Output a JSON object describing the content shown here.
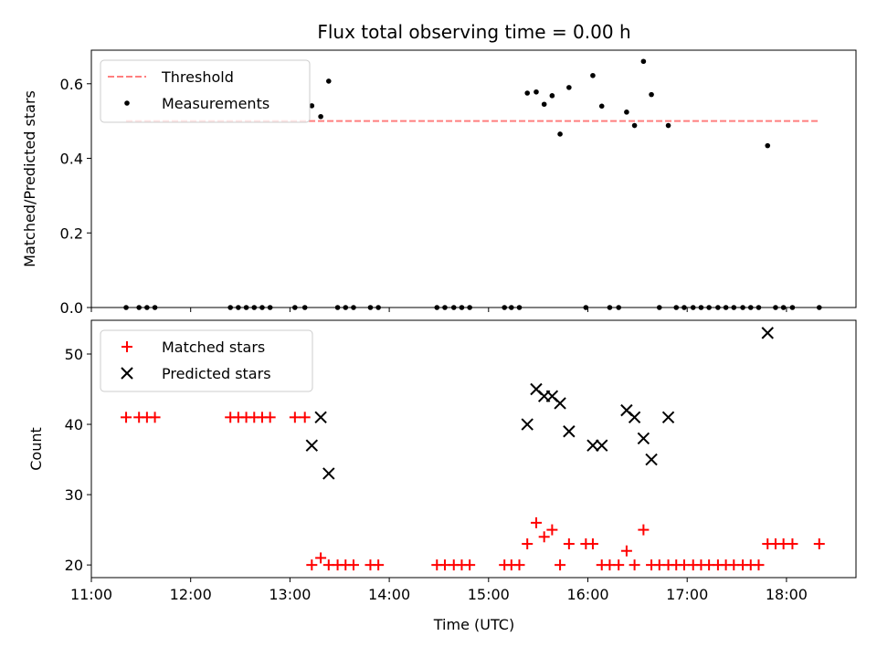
{
  "chart_data": {
    "title": "Flux total observing time = 0.00 h",
    "xlabel": "Time (UTC)",
    "xlim": [
      11.0,
      18.7
    ],
    "xticks": [
      {
        "v": 11,
        "label": "11:00"
      },
      {
        "v": 12,
        "label": "12:00"
      },
      {
        "v": 13,
        "label": "13:00"
      },
      {
        "v": 14,
        "label": "14:00"
      },
      {
        "v": 15,
        "label": "15:00"
      },
      {
        "v": 16,
        "label": "16:00"
      },
      {
        "v": 17,
        "label": "17:00"
      },
      {
        "v": 18,
        "label": "18:00"
      }
    ],
    "panels": [
      {
        "type": "scatter",
        "ylabel": "Matched/Predicted stars",
        "ylim": [
          0,
          0.69
        ],
        "yticks": [
          {
            "v": 0.0,
            "label": "0.0"
          },
          {
            "v": 0.2,
            "label": "0.2"
          },
          {
            "v": 0.4,
            "label": "0.4"
          },
          {
            "v": 0.6,
            "label": "0.6"
          }
        ],
        "threshold": {
          "name": "Threshold",
          "y": 0.5,
          "x": [
            11.35,
            18.33
          ],
          "color": "#ff7f7f"
        },
        "legend": [
          {
            "kind": "dashed",
            "label": "Threshold",
            "color": "#ff7f7f"
          },
          {
            "kind": "dot",
            "label": "Measurements",
            "color": "#000000"
          }
        ],
        "series": [
          {
            "name": "Measurements",
            "marker": "dot",
            "color": "#000000",
            "x": [
              11.35,
              11.48,
              11.56,
              11.64,
              12.4,
              12.48,
              12.56,
              12.64,
              12.72,
              12.8,
              13.05,
              13.15,
              13.22,
              13.31,
              13.39,
              13.48,
              13.56,
              13.64,
              13.81,
              13.89,
              14.48,
              14.56,
              14.65,
              14.73,
              14.81,
              15.16,
              15.23,
              15.31,
              15.39,
              15.48,
              15.56,
              15.64,
              15.72,
              15.81,
              15.98,
              16.05,
              16.14,
              16.22,
              16.31,
              16.39,
              16.47,
              16.56,
              16.64,
              16.72,
              16.81,
              16.89,
              16.97,
              17.06,
              17.14,
              17.22,
              17.31,
              17.39,
              17.47,
              17.56,
              17.64,
              17.72,
              17.81,
              17.89,
              17.97,
              18.06,
              18.33
            ],
            "y": [
              0,
              0,
              0,
              0,
              0,
              0,
              0,
              0,
              0,
              0,
              0,
              0,
              0.541,
              0.512,
              0.607,
              0,
              0,
              0,
              0,
              0,
              0,
              0,
              0,
              0,
              0,
              0,
              0,
              0,
              0.575,
              0.578,
              0.545,
              0.568,
              0.465,
              0.59,
              0,
              0.622,
              0.54,
              0,
              0,
              0.524,
              0.488,
              0.66,
              0.571,
              0,
              0.488,
              0,
              0,
              0,
              0,
              0,
              0,
              0,
              0,
              0,
              0,
              0,
              0.434,
              0,
              0,
              0,
              0
            ]
          }
        ]
      },
      {
        "type": "scatter",
        "ylabel": "Count",
        "ylim": [
          18.2,
          54.8
        ],
        "yticks": [
          {
            "v": 20,
            "label": "20"
          },
          {
            "v": 30,
            "label": "30"
          },
          {
            "v": 40,
            "label": "40"
          },
          {
            "v": 50,
            "label": "50"
          }
        ],
        "legend": [
          {
            "kind": "plus",
            "label": "Matched stars",
            "color": "#ff0000"
          },
          {
            "kind": "cross",
            "label": "Predicted stars",
            "color": "#000000"
          }
        ],
        "series": [
          {
            "name": "Matched stars",
            "marker": "plus",
            "color": "#ff0000",
            "x": [
              11.35,
              11.48,
              11.56,
              11.64,
              12.4,
              12.48,
              12.56,
              12.64,
              12.72,
              12.8,
              13.05,
              13.15,
              13.22,
              13.31,
              13.39,
              13.48,
              13.56,
              13.64,
              13.81,
              13.89,
              14.48,
              14.56,
              14.65,
              14.73,
              14.81,
              15.16,
              15.23,
              15.31,
              15.39,
              15.48,
              15.56,
              15.64,
              15.72,
              15.81,
              15.98,
              16.05,
              16.14,
              16.22,
              16.31,
              16.39,
              16.47,
              16.56,
              16.64,
              16.72,
              16.81,
              16.89,
              16.97,
              17.06,
              17.14,
              17.22,
              17.31,
              17.39,
              17.47,
              17.56,
              17.64,
              17.72,
              17.81,
              17.89,
              17.97,
              18.06,
              18.33
            ],
            "y": [
              41,
              41,
              41,
              41,
              41,
              41,
              41,
              41,
              41,
              41,
              41,
              41,
              20,
              21,
              20,
              20,
              20,
              20,
              20,
              20,
              20,
              20,
              20,
              20,
              20,
              20,
              20,
              20,
              23,
              26,
              24,
              25,
              20,
              23,
              23,
              23,
              20,
              20,
              20,
              22,
              20,
              25,
              20,
              20,
              20,
              20,
              20,
              20,
              20,
              20,
              20,
              20,
              20,
              20,
              20,
              20,
              23,
              23,
              23,
              23,
              23
            ]
          },
          {
            "name": "Predicted stars",
            "marker": "cross",
            "color": "#000000",
            "x": [
              13.22,
              13.31,
              13.39,
              15.39,
              15.48,
              15.56,
              15.64,
              15.72,
              15.81,
              16.05,
              16.14,
              16.39,
              16.47,
              16.56,
              16.64,
              16.81,
              17.81
            ],
            "y": [
              37,
              41,
              33,
              40,
              45,
              44,
              44,
              43,
              39,
              37,
              37,
              42,
              41,
              38,
              35,
              41,
              53
            ]
          }
        ]
      }
    ]
  }
}
